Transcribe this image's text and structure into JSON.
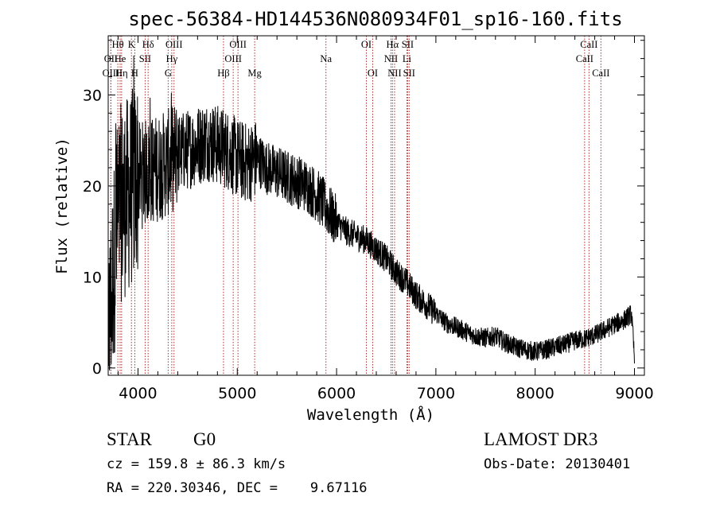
{
  "chart_data": {
    "type": "line",
    "title": "spec-56384-HD144536N080934F01_sp16-160.fits",
    "xlabel": "Wavelength (Å)",
    "ylabel": "Flux (relative)",
    "xlim": [
      3700,
      9100
    ],
    "ylim": [
      -0.8,
      36.5
    ],
    "xticks": [
      4000,
      5000,
      6000,
      7000,
      8000,
      9000
    ],
    "yticks": [
      0,
      10,
      20,
      30
    ],
    "xtick_labels": [
      "4000",
      "5000",
      "6000",
      "7000",
      "8000",
      "9000"
    ],
    "ytick_labels": [
      "0",
      "10",
      "20",
      "30"
    ],
    "series": [
      {
        "name": "flux",
        "continuum": [
          [
            3700,
            3
          ],
          [
            3760,
            12
          ],
          [
            3820,
            18
          ],
          [
            3900,
            19
          ],
          [
            4000,
            21
          ],
          [
            4100,
            21.5
          ],
          [
            4200,
            22
          ],
          [
            4300,
            22.5
          ],
          [
            4400,
            23.5
          ],
          [
            4500,
            24
          ],
          [
            4600,
            24.5
          ],
          [
            4700,
            25
          ],
          [
            4800,
            24.5
          ],
          [
            4900,
            24
          ],
          [
            5000,
            23
          ],
          [
            5100,
            22.5
          ],
          [
            5200,
            23
          ],
          [
            5300,
            22
          ],
          [
            5400,
            21.5
          ],
          [
            5500,
            21
          ],
          [
            5600,
            20.5
          ],
          [
            5700,
            20
          ],
          [
            5800,
            19
          ],
          [
            5900,
            17.5
          ],
          [
            6000,
            16
          ],
          [
            6100,
            15
          ],
          [
            6200,
            14.5
          ],
          [
            6300,
            14
          ],
          [
            6400,
            13
          ],
          [
            6500,
            12
          ],
          [
            6600,
            10.5
          ],
          [
            6700,
            9.5
          ],
          [
            6800,
            8
          ],
          [
            6900,
            7
          ],
          [
            7000,
            6
          ],
          [
            7100,
            5
          ],
          [
            7200,
            4.5
          ],
          [
            7300,
            4
          ],
          [
            7400,
            3.5
          ],
          [
            7500,
            3.3
          ],
          [
            7600,
            3.5
          ],
          [
            7700,
            2.8
          ],
          [
            7800,
            2.3
          ],
          [
            7900,
            2.0
          ],
          [
            8000,
            1.8
          ],
          [
            8100,
            2.0
          ],
          [
            8200,
            2.3
          ],
          [
            8300,
            2.6
          ],
          [
            8400,
            3.0
          ],
          [
            8500,
            3.2
          ],
          [
            8600,
            3.6
          ],
          [
            8700,
            4.2
          ],
          [
            8800,
            4.8
          ],
          [
            8900,
            5.3
          ],
          [
            8970,
            6.0
          ],
          [
            9000,
            1.0
          ]
        ]
      }
    ],
    "spectral_lines": [
      {
        "label": "Hθ",
        "wave": 3797,
        "row": 0
      },
      {
        "label": "OII",
        "wave": 3727,
        "row": 1
      },
      {
        "label": "OIII",
        "wave": 3727,
        "row": 2
      },
      {
        "label": "He",
        "wave": 3820,
        "row": 1
      },
      {
        "label": "Hη",
        "wave": 3835,
        "row": 2
      },
      {
        "label": "K",
        "wave": 3934,
        "row": 0
      },
      {
        "label": "SII",
        "wave": 4072,
        "row": 1
      },
      {
        "label": "H",
        "wave": 3968,
        "row": 2
      },
      {
        "label": "Hδ",
        "wave": 4102,
        "row": 0
      },
      {
        "label": "OIII",
        "wave": 4363,
        "row": 0
      },
      {
        "label": "Hγ",
        "wave": 4340,
        "row": 1
      },
      {
        "label": "G",
        "wave": 4304,
        "row": 2
      },
      {
        "label": "Hβ",
        "wave": 4861,
        "row": 2
      },
      {
        "label": "OIII",
        "wave": 5007,
        "row": 0
      },
      {
        "label": "OIII",
        "wave": 4959,
        "row": 1
      },
      {
        "label": "Mg",
        "wave": 5175,
        "row": 2
      },
      {
        "label": "Na",
        "wave": 5893,
        "row": 1
      },
      {
        "label": "OI",
        "wave": 6300,
        "row": 0
      },
      {
        "label": "OI",
        "wave": 6364,
        "row": 2
      },
      {
        "label": "Hα",
        "wave": 6563,
        "row": 0
      },
      {
        "label": "NII",
        "wave": 6548,
        "row": 1
      },
      {
        "label": "NII",
        "wave": 6584,
        "row": 2
      },
      {
        "label": "SII",
        "wave": 6716,
        "row": 0
      },
      {
        "label": "Li",
        "wave": 6708,
        "row": 1
      },
      {
        "label": "SII",
        "wave": 6731,
        "row": 2
      },
      {
        "label": "CaII",
        "wave": 8498,
        "row": 1
      },
      {
        "label": "CaII",
        "wave": 8542,
        "row": 0
      },
      {
        "label": "CaII",
        "wave": 8662,
        "row": 2
      }
    ]
  },
  "info": {
    "object_class": "STAR",
    "subclass": "G0",
    "survey": "LAMOST DR3",
    "redshift_line": "cz = 159.8 ± 86.3 km/s",
    "obs_date_line": "Obs-Date: 20130401",
    "coord_line": "RA = 220.30346, DEC =    9.67116"
  },
  "colors": {
    "spectrum": "#000000",
    "line_marker": "#b03030",
    "axis": "#000000"
  }
}
